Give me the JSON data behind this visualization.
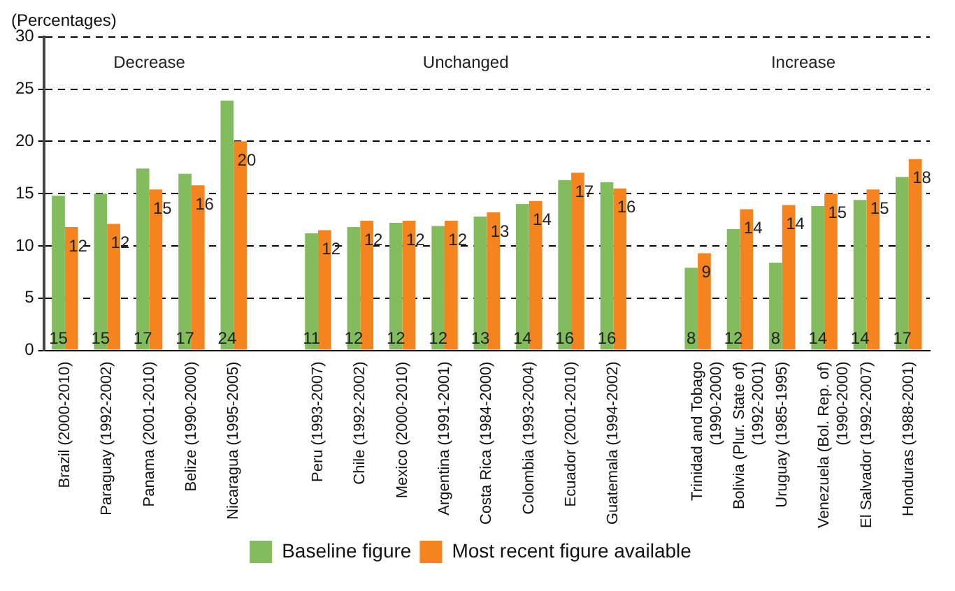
{
  "chart_data": {
    "type": "bar",
    "title": "(Percentages)",
    "categories": [
      "Brazil (2000-2010)",
      "Paraguay (1992-2002)",
      "Panama (2001-2010)",
      "Belize (1990-2000)",
      "Nicaragua (1995-2005)",
      null,
      "Peru (1993-2007)",
      "Chile (1992-2002)",
      "Mexico (2000-2010)",
      "Argentina (1991-2001)",
      "Costa Rica (1984-2000)",
      "Colombia (1993-2004)",
      "Ecuador (2001-2010)",
      "Guatemala (1994-2002)",
      null,
      "Trinidad and Tobago (1990-2000)",
      "Bolivia (Plur. State of) (1992-2001)",
      "Uruguay (1985-1995)",
      "Venezuela (Bol. Rep. of) (1990-2000)",
      "El Salvador (1992-2007)",
      "Honduras (1988-2001)"
    ],
    "series": [
      {
        "name": "Baseline figure",
        "color": "#82bc5c",
        "values": [
          14.8,
          15.0,
          17.4,
          16.9,
          23.9,
          null,
          11.2,
          11.8,
          12.2,
          11.9,
          12.8,
          14.0,
          16.3,
          16.1,
          null,
          7.9,
          11.6,
          8.4,
          13.8,
          14.4,
          16.6
        ],
        "value_labels": [
          "15",
          "15",
          "17",
          "17",
          "24",
          null,
          "11",
          "12",
          "12",
          "12",
          "13",
          "14",
          "16",
          "16",
          null,
          "8",
          "12",
          "8",
          "14",
          "14",
          "17"
        ]
      },
      {
        "name": "Most recent figure available",
        "color": "#f5841f",
        "values": [
          11.8,
          12.1,
          15.4,
          15.8,
          20.0,
          null,
          11.5,
          12.4,
          12.4,
          12.4,
          13.2,
          14.3,
          17.0,
          15.5,
          null,
          9.3,
          13.5,
          13.9,
          15.0,
          15.4,
          18.3
        ],
        "value_labels": [
          "12",
          "12",
          "15",
          "16",
          "20",
          null,
          "12",
          "12",
          "12",
          "12",
          "13",
          "14",
          "17",
          "16",
          null,
          "9",
          "14",
          "14",
          "15",
          "15",
          "18"
        ]
      }
    ],
    "annotations": [
      "Decrease",
      "Unchanged",
      "Increase"
    ],
    "ylim": [
      0,
      30
    ],
    "yticks": [
      0,
      5,
      10,
      15,
      20,
      25,
      30
    ],
    "grid": "y",
    "legend": "bottom"
  }
}
